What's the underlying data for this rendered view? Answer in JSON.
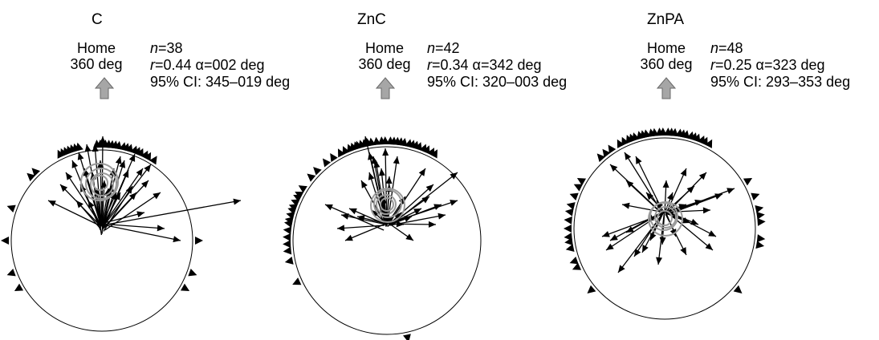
{
  "panels": [
    {
      "title": "C",
      "home_label": "Home",
      "home_bearing": "360 deg",
      "n_label": "n",
      "n_value": "=38",
      "r_label": "r",
      "r_value": "=0.44 α=002 deg",
      "ci_text": "95% CI: 345–019 deg"
    },
    {
      "title": "ZnC",
      "home_label": "Home",
      "home_bearing": "360 deg",
      "n_label": "n",
      "n_value": "=42",
      "r_label": "r",
      "r_value": "=0.34 α=342 deg",
      "ci_text": "95% CI: 320–003 deg"
    },
    {
      "title": "ZnPA",
      "home_label": "Home",
      "home_bearing": "360 deg",
      "n_label": "n",
      "n_value": "=48",
      "r_label": "r",
      "r_value": "=0.25 α=323 deg",
      "ci_text": "95% CI: 293–353 deg"
    }
  ],
  "colors": {
    "arrow_fill": "#a6a6a6",
    "circle": "#000000",
    "vectors": "#000000",
    "mean_rings": "#9a9a9a"
  }
}
